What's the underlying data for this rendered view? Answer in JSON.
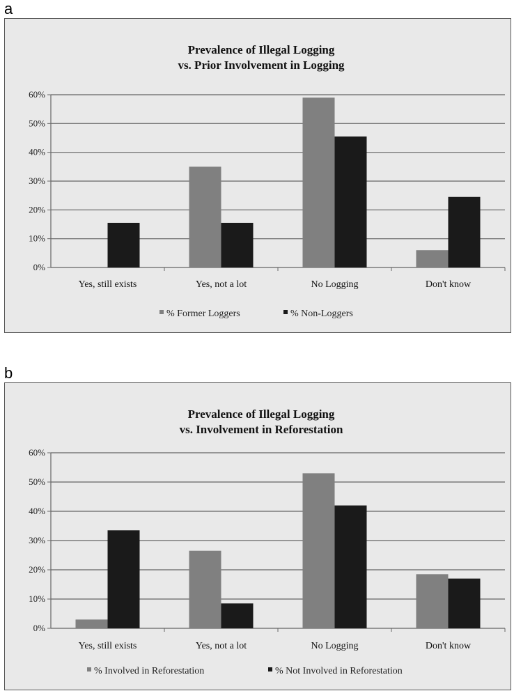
{
  "panels": [
    {
      "letter": "a"
    },
    {
      "letter": "b"
    }
  ],
  "chart_data": [
    {
      "type": "bar",
      "title_lines": [
        "Prevalence of Illegal Logging",
        "vs. Prior Involvement in Logging"
      ],
      "categories": [
        "Yes, still exists",
        "Yes, not a lot",
        "No Logging",
        "Don't know"
      ],
      "series": [
        {
          "name": "% Former Loggers",
          "values": [
            0,
            35,
            59,
            6
          ],
          "color": "#808080"
        },
        {
          "name": "% Non-Loggers",
          "values": [
            15.5,
            15.5,
            45.5,
            24.5
          ],
          "color": "#1a1a1a"
        }
      ],
      "yticks": [
        "0%",
        "10%",
        "20%",
        "30%",
        "40%",
        "50%",
        "60%"
      ],
      "ylim": [
        0,
        60
      ],
      "grid": true,
      "legend": "bottom"
    },
    {
      "type": "bar",
      "title_lines": [
        "Prevalence of Illegal Logging",
        "vs. Involvement in Reforestation"
      ],
      "categories": [
        "Yes, still exists",
        "Yes, not a lot",
        "No Logging",
        "Don't know"
      ],
      "series": [
        {
          "name": "% Involved in Reforestation",
          "values": [
            3,
            26.5,
            53,
            18.5
          ],
          "color": "#808080"
        },
        {
          "name": "% Not Involved in Reforestation",
          "values": [
            33.5,
            8.5,
            42,
            17
          ],
          "color": "#1a1a1a"
        }
      ],
      "yticks": [
        "0%",
        "10%",
        "20%",
        "30%",
        "40%",
        "50%",
        "60%"
      ],
      "ylim": [
        0,
        60
      ],
      "grid": true,
      "legend": "bottom"
    }
  ]
}
